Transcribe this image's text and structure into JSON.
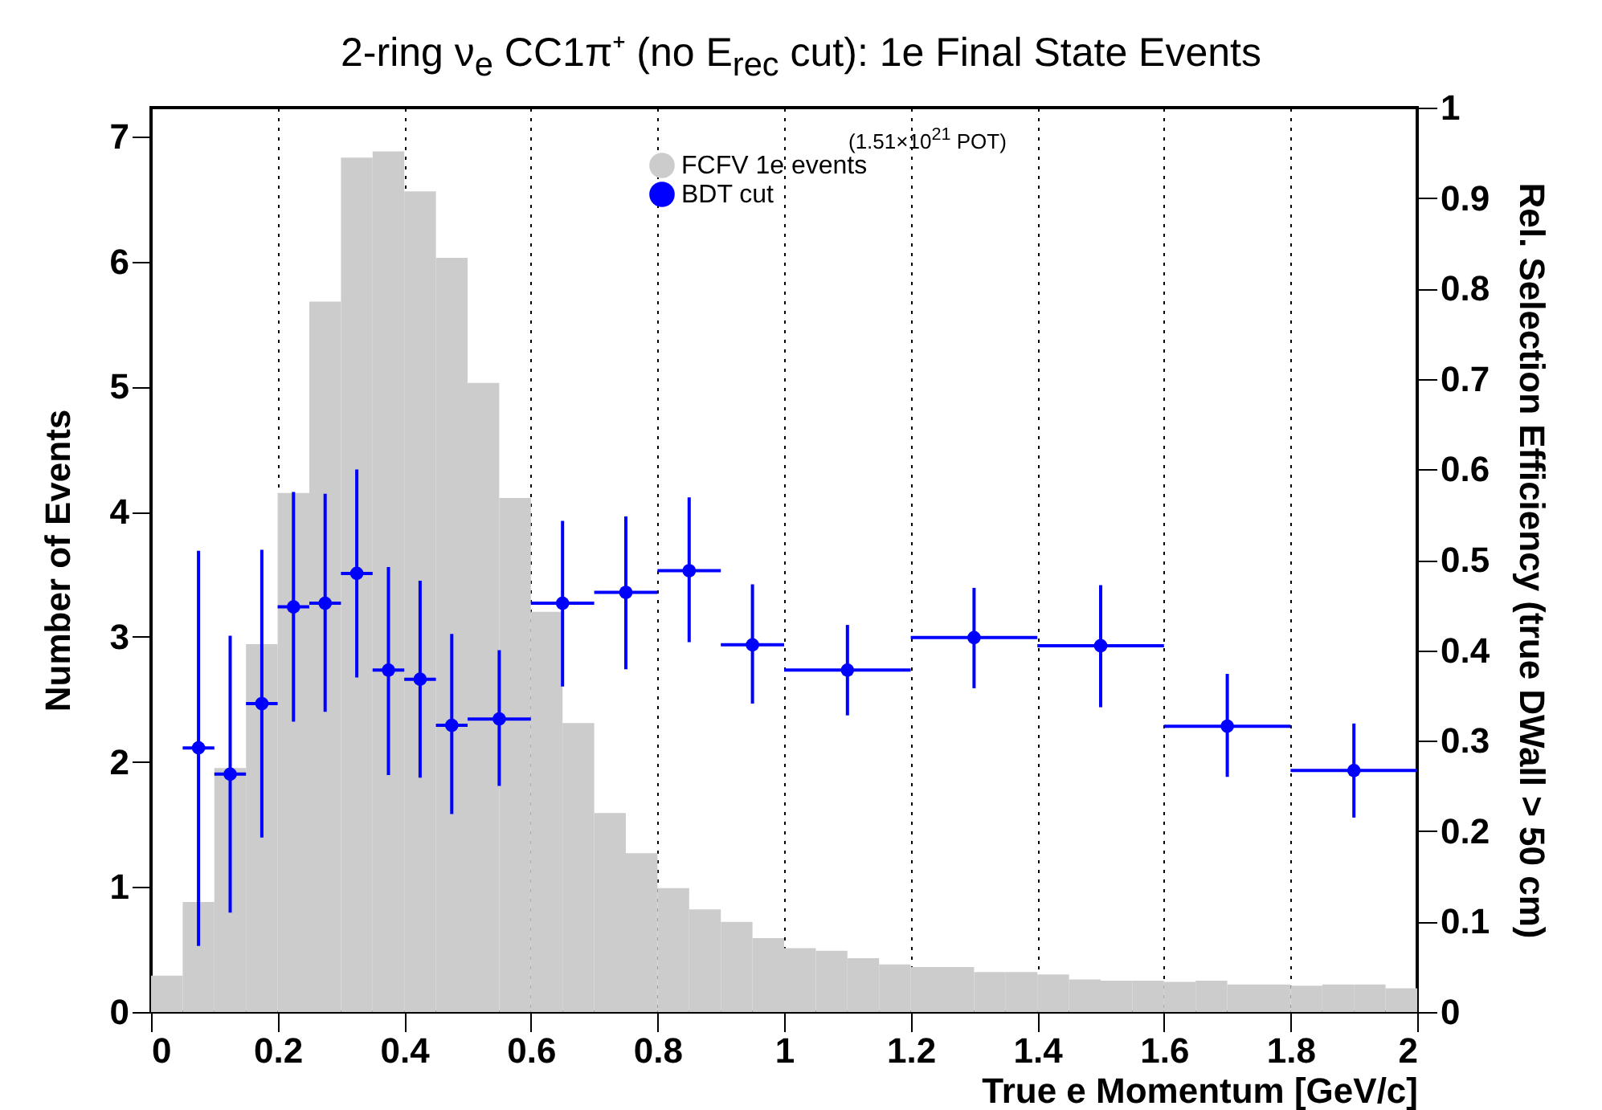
{
  "chart_data": {
    "type": "histogram",
    "title": "2-ring ν$_{e}$ CC1π⁺ (no E$_{rec}$ cut): 1e Final State Events",
    "xlabel": "True e Momentum [GeV/c]",
    "ylabel": "Number of Events",
    "y2label": "Rel. Selection Efficiency (true DWall > 50 cm)",
    "annotations": [
      "(1.51×10$^{21}$ POT)"
    ],
    "xlim": [
      0,
      2
    ],
    "xticks": [
      0,
      0.2,
      0.4,
      0.6,
      0.8,
      1,
      1.2,
      1.4,
      1.6,
      1.8,
      2
    ],
    "ylim": [
      0,
      7.23
    ],
    "yticks": [
      0,
      1,
      2,
      3,
      4,
      5,
      6,
      7
    ],
    "y2lim": [
      0,
      1
    ],
    "y2ticks": [
      0,
      0.1,
      0.2,
      0.3,
      0.4,
      0.5,
      0.6,
      0.7,
      0.8,
      0.9,
      1
    ],
    "grid": "x",
    "legend": "top",
    "series": [
      {
        "name": "FCFV 1e events",
        "color": "#cccccc",
        "bins": [
          0,
          0.05,
          0.1,
          0.15,
          0.2,
          0.25,
          0.3,
          0.35,
          0.4,
          0.45,
          0.5,
          0.55,
          0.6,
          0.65,
          0.7,
          0.75,
          0.8,
          0.85,
          0.9,
          0.95,
          1,
          1.05,
          1.1,
          1.15,
          1.2,
          1.25,
          1.3,
          1.35,
          1.4,
          1.45,
          1.5,
          1.55,
          1.6,
          1.65,
          1.7,
          1.75,
          1.8,
          1.85,
          1.9,
          1.95,
          2
        ],
        "values": [
          0.29,
          0.88,
          1.95,
          2.94,
          4.15,
          5.68,
          6.83,
          6.88,
          6.56,
          6.03,
          5.03,
          4.11,
          3.2,
          2.31,
          1.59,
          1.27,
          0.99,
          0.82,
          0.72,
          0.59,
          0.51,
          0.49,
          0.43,
          0.38,
          0.36,
          0.36,
          0.32,
          0.32,
          0.3,
          0.26,
          0.25,
          0.25,
          0.24,
          0.25,
          0.22,
          0.22,
          0.21,
          0.22,
          0.22,
          0.19
        ]
      },
      {
        "type": "scatter",
        "name": "BDT cut",
        "color": "#0000ff",
        "axis": "y2",
        "marker": "circle",
        "x": [
          0.075,
          0.125,
          0.175,
          0.225,
          0.275,
          0.325,
          0.375,
          0.425,
          0.475,
          0.55,
          0.65,
          0.75,
          0.85,
          0.95,
          1.1,
          1.3,
          1.5,
          1.7,
          1.9
        ],
        "values": [
          0.292,
          0.263,
          0.341,
          0.448,
          0.452,
          0.485,
          0.378,
          0.368,
          0.317,
          0.324,
          0.452,
          0.464,
          0.488,
          0.406,
          0.378,
          0.414,
          0.405,
          0.316,
          0.267
        ],
        "errors": [
          [
            0.073,
            0.51
          ],
          [
            0.11,
            0.416
          ],
          [
            0.193,
            0.511
          ],
          [
            0.321,
            0.575
          ],
          [
            0.332,
            0.573
          ],
          [
            0.37,
            0.6
          ],
          [
            0.262,
            0.492
          ],
          [
            0.259,
            0.477
          ],
          [
            0.219,
            0.418
          ],
          [
            0.25,
            0.4
          ],
          [
            0.36,
            0.543
          ],
          [
            0.379,
            0.548
          ],
          [
            0.409,
            0.569
          ],
          [
            0.341,
            0.473
          ],
          [
            0.328,
            0.428
          ],
          [
            0.358,
            0.469
          ],
          [
            0.337,
            0.472
          ],
          [
            0.26,
            0.374
          ],
          [
            0.215,
            0.319
          ]
        ],
        "xerrors": [
          0.025,
          0.025,
          0.025,
          0.025,
          0.025,
          0.025,
          0.025,
          0.025,
          0.025,
          0.05,
          0.05,
          0.05,
          0.05,
          0.05,
          0.1,
          0.1,
          0.1,
          0.1,
          0.1
        ]
      }
    ]
  }
}
